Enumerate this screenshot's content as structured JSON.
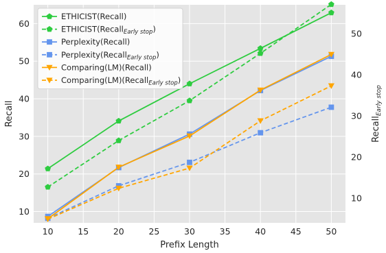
{
  "chart_data": {
    "type": "line",
    "x": [
      10,
      20,
      30,
      40,
      50
    ],
    "xlabel": "Prefix Length",
    "ylabel": "Recall",
    "ylabel_right": "Recall",
    "ylabel_right_sub": "Early stop",
    "xlim": [
      8,
      52
    ],
    "ylim": [
      7,
      65
    ],
    "ylim_right": [
      4,
      57
    ],
    "xticks": [
      "10",
      "15",
      "20",
      "25",
      "30",
      "35",
      "40",
      "45",
      "50"
    ],
    "yticks": [
      "10",
      "20",
      "30",
      "40",
      "50",
      "60"
    ],
    "yticks_right": [
      "10",
      "20",
      "30",
      "40",
      "50"
    ],
    "grid": true,
    "legend_position": "top-left",
    "series": [
      {
        "name": "ETHICIST(Recall)",
        "name_main": "ETHICIST(Recall)",
        "name_sub": "",
        "name_tail": "",
        "axis": "left",
        "style": "solid",
        "marker": "pentagon",
        "color": "#2ecc40",
        "values": [
          21.4,
          34.1,
          44.0,
          53.4,
          62.9
        ]
      },
      {
        "name": "ETHICIST(Recall Early stop)",
        "name_main": "ETHICIST(Recall",
        "name_sub": "Early stop",
        "name_tail": ")",
        "axis": "right",
        "style": "dashed",
        "marker": "pentagon",
        "color": "#2ecc40",
        "values": [
          12.7,
          24.0,
          33.7,
          45.2,
          57.1
        ]
      },
      {
        "name": "Perplexity(Recall)",
        "name_main": "Perplexity(Recall)",
        "name_sub": "",
        "name_tail": "",
        "axis": "left",
        "style": "solid",
        "marker": "square",
        "color": "#6495ed",
        "values": [
          8.7,
          21.7,
          30.6,
          42.2,
          51.3
        ]
      },
      {
        "name": "Perplexity(Recall Early stop)",
        "name_main": "Perplexity(Recall",
        "name_sub": "Early stop",
        "name_tail": ")",
        "axis": "right",
        "style": "dashed",
        "marker": "square",
        "color": "#6495ed",
        "values": [
          5.1,
          13.0,
          18.7,
          25.9,
          32.1
        ]
      },
      {
        "name": "Comparing(LM)(Recall)",
        "name_main": "Comparing(LM)(Recall)",
        "name_sub": "",
        "name_tail": "",
        "axis": "left",
        "style": "solid",
        "marker": "triangle-down",
        "color": "#ffa500",
        "values": [
          8.1,
          21.8,
          30.1,
          42.3,
          51.8
        ]
      },
      {
        "name": "Comparing(LM)(Recall Early stop)",
        "name_main": "Comparing(LM)(Recall",
        "name_sub": "Early stop",
        "name_tail": ")",
        "axis": "right",
        "style": "dashed",
        "marker": "triangle-down",
        "color": "#ffa500",
        "values": [
          4.9,
          12.4,
          17.3,
          28.8,
          37.3
        ]
      }
    ]
  }
}
